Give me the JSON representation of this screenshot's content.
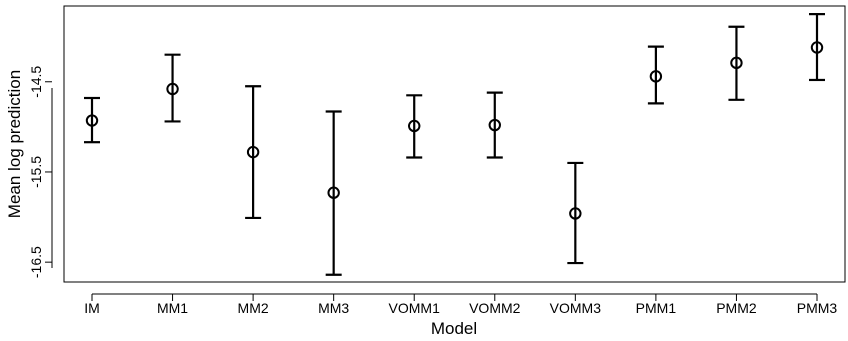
{
  "chart_data": {
    "type": "scatter",
    "title": "",
    "xlabel": "Model",
    "ylabel": "Mean log prediction",
    "categories": [
      "IM",
      "MM1",
      "MM2",
      "MM3",
      "VOMM1",
      "VOMM2",
      "VOMM3",
      "PMM1",
      "PMM2",
      "PMM3"
    ],
    "series": [
      {
        "mean": [
          -14.93,
          -14.58,
          -15.28,
          -15.73,
          -14.99,
          -14.98,
          -15.96,
          -14.44,
          -14.29,
          -14.12
        ],
        "lower": [
          -15.17,
          -14.94,
          -16.01,
          -16.64,
          -15.34,
          -15.34,
          -16.51,
          -14.74,
          -14.7,
          -14.48
        ],
        "upper": [
          -14.68,
          -14.2,
          -14.55,
          -14.83,
          -14.65,
          -14.62,
          -15.4,
          -14.11,
          -13.89,
          -13.75
        ],
        "marker": "open-circle",
        "error_bars": true
      }
    ],
    "yticks": [
      -14.5,
      -15.5,
      -16.5
    ],
    "ytick_labels": [
      "-14.5",
      "-15.5",
      "-16.5"
    ],
    "ylim": [
      -16.72,
      -13.66
    ],
    "grid": false,
    "legend": "none"
  }
}
